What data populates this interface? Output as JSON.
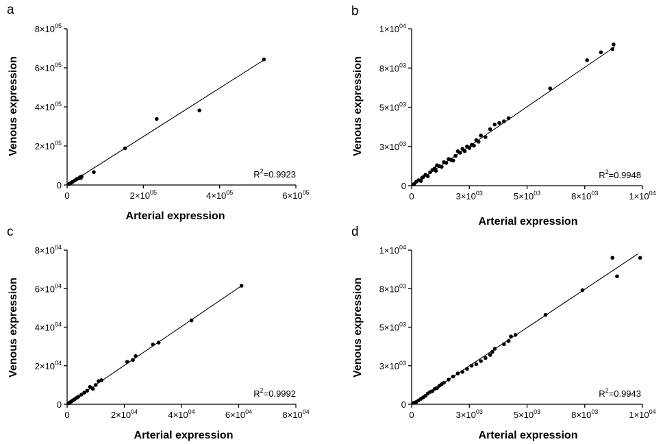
{
  "chart_data": [
    {
      "panel": "a",
      "type": "scatter",
      "xlabel": "Arterial expression",
      "ylabel": "Venous expression",
      "r2_text": "R2=0.9923",
      "xlim": [
        0,
        600000
      ],
      "ylim": [
        0,
        800000
      ],
      "xticks": [
        0,
        200000,
        400000,
        600000
      ],
      "xtick_labels": [
        {
          "m": "0",
          "e": ""
        },
        {
          "m": "2×10",
          "e": "05"
        },
        {
          "m": "4×10",
          "e": "05"
        },
        {
          "m": "6×10",
          "e": "05"
        }
      ],
      "yticks": [
        0,
        200000,
        400000,
        600000,
        800000
      ],
      "ytick_labels": [
        {
          "m": "0",
          "e": ""
        },
        {
          "m": "2×10",
          "e": "05"
        },
        {
          "m": "4×10",
          "e": "05"
        },
        {
          "m": "6×10",
          "e": "05"
        },
        {
          "m": "8×10",
          "e": "05"
        }
      ],
      "fit": {
        "x": [
          0,
          516000
        ],
        "y": [
          0,
          640000
        ]
      },
      "x": [
        5000,
        10000,
        15000,
        20000,
        25000,
        30000,
        34000,
        36000,
        38000,
        70000,
        152000,
        235000,
        347000,
        516000
      ],
      "y": [
        5000,
        11000,
        17000,
        23000,
        30000,
        34000,
        40000,
        36000,
        44000,
        66000,
        188000,
        338000,
        382000,
        643000
      ]
    },
    {
      "panel": "b",
      "type": "scatter",
      "xlabel": "Arterial expression",
      "ylabel": "Venous expression",
      "r2_text": "R2=0.9948",
      "xlim": [
        0,
        10000
      ],
      "ylim": [
        0,
        10000
      ],
      "xticks": [
        0,
        2500,
        5000,
        7500,
        10000
      ],
      "xtick_labels": [
        {
          "m": "0",
          "e": ""
        },
        {
          "m": "3×10",
          "e": "03"
        },
        {
          "m": "5×10",
          "e": "03"
        },
        {
          "m": "8×10",
          "e": "03"
        },
        {
          "m": "1×10",
          "e": "04"
        }
      ],
      "yticks": [
        0,
        2500,
        5000,
        7500,
        10000
      ],
      "ytick_labels": [
        {
          "m": "0",
          "e": ""
        },
        {
          "m": "3×10",
          "e": "03"
        },
        {
          "m": "5×10",
          "e": "03"
        },
        {
          "m": "8×10",
          "e": "03"
        },
        {
          "m": "1×10",
          "e": "04"
        }
      ],
      "fit": {
        "x": [
          0,
          8800
        ],
        "y": [
          0,
          8850
        ]
      },
      "x": [
        100,
        200,
        300,
        400,
        450,
        500,
        600,
        700,
        800,
        900,
        1000,
        1050,
        1100,
        1200,
        1300,
        1400,
        1500,
        1600,
        1700,
        1800,
        1900,
        2000,
        2100,
        2200,
        2300,
        2400,
        2500,
        2600,
        2700,
        2800,
        2900,
        3000,
        3200,
        3400,
        3600,
        3800,
        4000,
        4200,
        6000,
        7600,
        8200,
        8700,
        8750
      ],
      "y": [
        100,
        250,
        350,
        300,
        500,
        550,
        700,
        600,
        850,
        1000,
        1100,
        950,
        1300,
        1250,
        1200,
        1500,
        1450,
        1700,
        1650,
        1600,
        1900,
        2200,
        2100,
        2350,
        2200,
        2500,
        2400,
        2600,
        2550,
        2900,
        2800,
        3200,
        3100,
        3600,
        3900,
        4000,
        4100,
        4300,
        6200,
        8000,
        8500,
        8700,
        9000
      ]
    },
    {
      "panel": "c",
      "type": "scatter",
      "xlabel": "Arterial expression",
      "ylabel": "Venous expression",
      "r2_text": "R2=0.9992",
      "xlim": [
        0,
        80000
      ],
      "ylim": [
        0,
        80000
      ],
      "xticks": [
        0,
        20000,
        40000,
        60000,
        80000
      ],
      "xtick_labels": [
        {
          "m": "0",
          "e": ""
        },
        {
          "m": "2×10",
          "e": "04"
        },
        {
          "m": "4×10",
          "e": "04"
        },
        {
          "m": "6×10",
          "e": "04"
        },
        {
          "m": "8×10",
          "e": "04"
        }
      ],
      "yticks": [
        0,
        20000,
        40000,
        60000,
        80000
      ],
      "ytick_labels": [
        {
          "m": "0",
          "e": ""
        },
        {
          "m": "2×10",
          "e": "04"
        },
        {
          "m": "4×10",
          "e": "04"
        },
        {
          "m": "6×10",
          "e": "04"
        },
        {
          "m": "8×10",
          "e": "04"
        }
      ],
      "fit": {
        "x": [
          0,
          61000
        ],
        "y": [
          0,
          61500
        ]
      },
      "x": [
        500,
        1000,
        1500,
        2000,
        2500,
        3000,
        3500,
        4000,
        5000,
        6000,
        7000,
        8000,
        9000,
        10000,
        11000,
        12000,
        21000,
        23000,
        24000,
        30000,
        32000,
        43500,
        61000
      ],
      "y": [
        500,
        1000,
        1500,
        2000,
        2500,
        3000,
        3500,
        4000,
        5000,
        6000,
        7000,
        9000,
        8000,
        10000,
        12000,
        12500,
        22000,
        23000,
        25000,
        31000,
        32000,
        43500,
        61500
      ]
    },
    {
      "panel": "d",
      "type": "scatter",
      "xlabel": "Arterial expression",
      "ylabel": "Venous expression",
      "r2_text": "R2=0.9943",
      "xlim": [
        0,
        10000
      ],
      "ylim": [
        0,
        10000
      ],
      "xticks": [
        0,
        2500,
        5000,
        7500,
        10000
      ],
      "xtick_labels": [
        {
          "m": "0",
          "e": ""
        },
        {
          "m": "3×10",
          "e": "03"
        },
        {
          "m": "5×10",
          "e": "03"
        },
        {
          "m": "8×10",
          "e": "03"
        },
        {
          "m": "1×10",
          "e": "04"
        }
      ],
      "yticks": [
        0,
        2500,
        5000,
        7500,
        10000
      ],
      "ytick_labels": [
        {
          "m": "0",
          "e": ""
        },
        {
          "m": "3×10",
          "e": "03"
        },
        {
          "m": "5×10",
          "e": "03"
        },
        {
          "m": "8×10",
          "e": "03"
        },
        {
          "m": "1×10",
          "e": "04"
        }
      ],
      "fit": {
        "x": [
          0,
          9800
        ],
        "y": [
          0,
          9750
        ]
      },
      "x": [
        100,
        200,
        300,
        400,
        500,
        600,
        700,
        800,
        900,
        1000,
        1100,
        1200,
        1300,
        1400,
        1600,
        1800,
        2000,
        2200,
        2400,
        2600,
        2800,
        3000,
        3200,
        3400,
        3500,
        3600,
        4000,
        4200,
        4300,
        4500,
        5800,
        7400,
        8700,
        8900,
        9900
      ],
      "y": [
        100,
        150,
        250,
        350,
        450,
        550,
        700,
        800,
        850,
        1000,
        1050,
        1200,
        1300,
        1400,
        1600,
        1800,
        2000,
        2100,
        2300,
        2500,
        2600,
        2800,
        3000,
        3200,
        3400,
        3600,
        3900,
        4100,
        4400,
        4500,
        5800,
        7400,
        9500,
        8300,
        9500
      ]
    }
  ]
}
